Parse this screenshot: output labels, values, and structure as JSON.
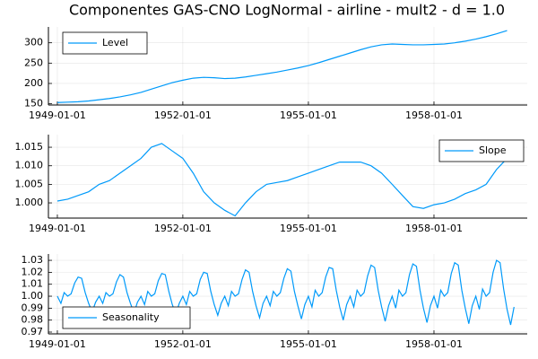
{
  "chart_data": [
    {
      "type": "line",
      "title": "Componentes GAS-CNO LogNormal - airline - mult2 - d = 1.0",
      "grid": true,
      "legend": "top-left",
      "xlim": [
        "1948-10-15",
        "1960-03-25"
      ],
      "xticks": [
        "1949-01-01",
        "1952-01-01",
        "1955-01-01",
        "1958-01-01"
      ],
      "ylim": [
        147,
        339
      ],
      "yticks": [
        150,
        200,
        250,
        300
      ],
      "x": [
        "1949-01-01",
        "1949-04-01",
        "1949-07-01",
        "1949-10-01",
        "1950-01-01",
        "1950-04-01",
        "1950-07-01",
        "1950-10-01",
        "1951-01-01",
        "1951-04-01",
        "1951-07-01",
        "1951-10-01",
        "1952-01-01",
        "1952-04-01",
        "1952-07-01",
        "1952-10-01",
        "1953-01-01",
        "1953-04-01",
        "1953-07-01",
        "1953-10-01",
        "1954-01-01",
        "1954-04-01",
        "1954-07-01",
        "1954-10-01",
        "1955-01-01",
        "1955-04-01",
        "1955-07-01",
        "1955-10-01",
        "1956-01-01",
        "1956-04-01",
        "1956-07-01",
        "1956-10-01",
        "1957-01-01",
        "1957-04-01",
        "1957-07-01",
        "1957-10-01",
        "1958-01-01",
        "1958-04-01",
        "1958-07-01",
        "1958-10-01",
        "1959-01-01",
        "1959-04-01",
        "1959-07-01",
        "1959-10-01"
      ],
      "series": [
        {
          "name": "Level",
          "color": "#009afa",
          "values": [
            153,
            154,
            155,
            157,
            160,
            163,
            167,
            172,
            178,
            186,
            194,
            202,
            208,
            213,
            215,
            214,
            212,
            213,
            216,
            220,
            224,
            228,
            233,
            238,
            244,
            251,
            259,
            267,
            275,
            283,
            290,
            295,
            297,
            296,
            295,
            295,
            296,
            297,
            300,
            304,
            309,
            315,
            322,
            330
          ]
        }
      ]
    },
    {
      "type": "line",
      "grid": true,
      "legend": "top-right",
      "xlim": [
        "1948-10-15",
        "1960-03-25"
      ],
      "xticks": [
        "1949-01-01",
        "1952-01-01",
        "1955-01-01",
        "1958-01-01"
      ],
      "ylim": [
        0.9959,
        1.0184
      ],
      "yticks": [
        {
          "value": 1.0,
          "label": "1.000"
        },
        1.005,
        {
          "value": 1.01,
          "label": "1.010"
        },
        1.015
      ],
      "x": [
        "1949-01-01",
        "1949-04-01",
        "1949-07-01",
        "1949-10-01",
        "1950-01-01",
        "1950-04-01",
        "1950-07-01",
        "1950-10-01",
        "1951-01-01",
        "1951-04-01",
        "1951-07-01",
        "1951-10-01",
        "1952-01-01",
        "1952-04-01",
        "1952-07-01",
        "1952-10-01",
        "1953-01-01",
        "1953-04-01",
        "1953-07-01",
        "1953-10-01",
        "1954-01-01",
        "1954-04-01",
        "1954-07-01",
        "1954-10-01",
        "1955-01-01",
        "1955-04-01",
        "1955-07-01",
        "1955-10-01",
        "1956-01-01",
        "1956-04-01",
        "1956-07-01",
        "1956-10-01",
        "1957-01-01",
        "1957-04-01",
        "1957-07-01",
        "1957-10-01",
        "1958-01-01",
        "1958-04-01",
        "1958-07-01",
        "1958-10-01",
        "1959-01-01",
        "1959-04-01",
        "1959-07-01",
        "1959-10-01"
      ],
      "series": [
        {
          "name": "Slope",
          "color": "#009afa",
          "values": [
            1.0005,
            1.001,
            1.002,
            1.003,
            1.005,
            1.006,
            1.008,
            1.01,
            1.012,
            1.015,
            1.016,
            1.014,
            1.012,
            1.008,
            1.003,
            1.0,
            0.998,
            0.9965,
            1.0,
            1.003,
            1.005,
            1.0055,
            1.006,
            1.007,
            1.008,
            1.009,
            1.01,
            1.011,
            1.011,
            1.011,
            1.01,
            1.008,
            1.005,
            1.002,
            0.999,
            0.9985,
            0.9995,
            1.0,
            1.001,
            1.0025,
            1.0035,
            1.005,
            1.009,
            1.012
          ]
        }
      ]
    },
    {
      "type": "line",
      "grid": true,
      "legend": "bottom-left",
      "xlim": [
        "1948-10-15",
        "1960-03-25"
      ],
      "xticks": [
        "1949-01-01",
        "1952-01-01",
        "1955-01-01",
        "1958-01-01"
      ],
      "ylim": [
        0.9685,
        1.0353
      ],
      "yticks": [
        0.97,
        0.98,
        0.99,
        {
          "value": 1.0,
          "label": "1.00"
        },
        1.01,
        1.02,
        1.03
      ],
      "x": [
        "1949-01-01",
        "1949-02-01",
        "1949-03-01",
        "1949-04-01",
        "1949-05-01",
        "1949-06-01",
        "1949-07-01",
        "1949-08-01",
        "1949-09-01",
        "1949-10-01",
        "1949-11-01",
        "1949-12-01",
        "1950-01-01",
        "1950-02-01",
        "1950-03-01",
        "1950-04-01",
        "1950-05-01",
        "1950-06-01",
        "1950-07-01",
        "1950-08-01",
        "1950-09-01",
        "1950-10-01",
        "1950-11-01",
        "1950-12-01",
        "1951-01-01",
        "1951-02-01",
        "1951-03-01",
        "1951-04-01",
        "1951-05-01",
        "1951-06-01",
        "1951-07-01",
        "1951-08-01",
        "1951-09-01",
        "1951-10-01",
        "1951-11-01",
        "1951-12-01",
        "1952-01-01",
        "1952-02-01",
        "1952-03-01",
        "1952-04-01",
        "1952-05-01",
        "1952-06-01",
        "1952-07-01",
        "1952-08-01",
        "1952-09-01",
        "1952-10-01",
        "1952-11-01",
        "1952-12-01",
        "1953-01-01",
        "1953-02-01",
        "1953-03-01",
        "1953-04-01",
        "1953-05-01",
        "1953-06-01",
        "1953-07-01",
        "1953-08-01",
        "1953-09-01",
        "1953-10-01",
        "1953-11-01",
        "1953-12-01",
        "1954-01-01",
        "1954-02-01",
        "1954-03-01",
        "1954-04-01",
        "1954-05-01",
        "1954-06-01",
        "1954-07-01",
        "1954-08-01",
        "1954-09-01",
        "1954-10-01",
        "1954-11-01",
        "1954-12-01",
        "1955-01-01",
        "1955-02-01",
        "1955-03-01",
        "1955-04-01",
        "1955-05-01",
        "1955-06-01",
        "1955-07-01",
        "1955-08-01",
        "1955-09-01",
        "1955-10-01",
        "1955-11-01",
        "1955-12-01",
        "1956-01-01",
        "1956-02-01",
        "1956-03-01",
        "1956-04-01",
        "1956-05-01",
        "1956-06-01",
        "1956-07-01",
        "1956-08-01",
        "1956-09-01",
        "1956-10-01",
        "1956-11-01",
        "1956-12-01",
        "1957-01-01",
        "1957-02-01",
        "1957-03-01",
        "1957-04-01",
        "1957-05-01",
        "1957-06-01",
        "1957-07-01",
        "1957-08-01",
        "1957-09-01",
        "1957-10-01",
        "1957-11-01",
        "1957-12-01",
        "1958-01-01",
        "1958-02-01",
        "1958-03-01",
        "1958-04-01",
        "1958-05-01",
        "1958-06-01",
        "1958-07-01",
        "1958-08-01",
        "1958-09-01",
        "1958-10-01",
        "1958-11-01",
        "1958-12-01",
        "1959-01-01",
        "1959-02-01",
        "1959-03-01",
        "1959-04-01",
        "1959-05-01",
        "1959-06-01",
        "1959-07-01",
        "1959-08-01",
        "1959-09-01",
        "1959-10-01",
        "1959-11-01",
        "1959-12-01"
      ],
      "series": [
        {
          "name": "Seasonality",
          "color": "#009afa",
          "values": [
            1.0,
            0.994,
            1.003,
            1.0,
            1.002,
            1.011,
            1.016,
            1.015,
            1.003,
            0.994,
            0.987,
            0.995,
            1.0,
            0.994,
            1.003,
            1.0,
            1.002,
            1.012,
            1.018,
            1.016,
            1.003,
            0.994,
            0.986,
            0.995,
            1.0,
            0.993,
            1.004,
            1.0,
            1.002,
            1.013,
            1.019,
            1.018,
            1.004,
            0.993,
            0.985,
            0.994,
            1.0,
            0.993,
            1.004,
            1.0,
            1.002,
            1.014,
            1.02,
            1.019,
            1.004,
            0.993,
            0.984,
            0.994,
            1.0,
            0.992,
            1.004,
            1.0,
            1.002,
            1.014,
            1.022,
            1.02,
            1.004,
            0.992,
            0.982,
            0.994,
            1.0,
            0.992,
            1.004,
            1.0,
            1.003,
            1.015,
            1.023,
            1.021,
            1.004,
            0.992,
            0.981,
            0.993,
            1.0,
            0.991,
            1.005,
            1.0,
            1.003,
            1.016,
            1.024,
            1.023,
            1.005,
            0.991,
            0.98,
            0.993,
            1.0,
            0.991,
            1.005,
            1.0,
            1.003,
            1.017,
            1.026,
            1.024,
            1.005,
            0.991,
            0.979,
            0.992,
            1.0,
            0.99,
            1.005,
            1.0,
            1.003,
            1.018,
            1.027,
            1.025,
            1.005,
            0.99,
            0.978,
            0.992,
            1.0,
            0.99,
            1.005,
            1.0,
            1.003,
            1.019,
            1.028,
            1.026,
            1.005,
            0.99,
            0.977,
            0.992,
            1.0,
            0.989,
            1.006,
            1.0,
            1.003,
            1.02,
            1.03,
            1.028,
            1.006,
            0.989,
            0.976,
            0.991
          ]
        }
      ]
    }
  ]
}
